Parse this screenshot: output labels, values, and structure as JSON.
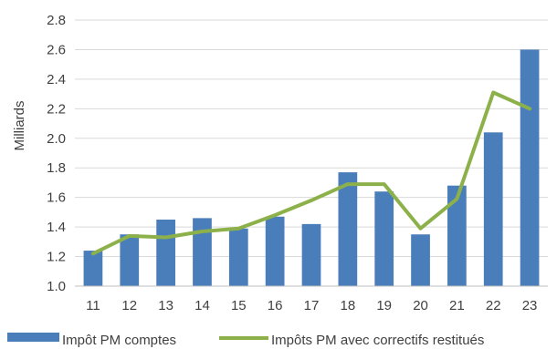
{
  "chart_data": {
    "type": "bar",
    "categories": [
      "11",
      "12",
      "13",
      "14",
      "15",
      "16",
      "17",
      "18",
      "19",
      "20",
      "21",
      "22",
      "23"
    ],
    "ylabel": "Milliards",
    "xlabel": "",
    "ylim": [
      1.0,
      2.8
    ],
    "yticks": [
      "1.0",
      "1.2",
      "1.4",
      "1.6",
      "1.8",
      "2.0",
      "2.2",
      "2.4",
      "2.6",
      "2.8"
    ],
    "grid": true,
    "legend_position": "bottom",
    "series": [
      {
        "name": "Impôt PM comptes",
        "type": "bar",
        "color": "#4a7ebb",
        "values": [
          1.24,
          1.35,
          1.45,
          1.46,
          1.39,
          1.47,
          1.42,
          1.77,
          1.64,
          1.35,
          1.68,
          2.04,
          2.6
        ]
      },
      {
        "name": "Impôts PM avec correctifs restitués",
        "type": "line",
        "color": "#8db14a",
        "values": [
          1.22,
          1.34,
          1.33,
          1.37,
          1.39,
          1.48,
          1.58,
          1.69,
          1.69,
          1.39,
          1.59,
          2.31,
          2.2
        ]
      }
    ]
  }
}
